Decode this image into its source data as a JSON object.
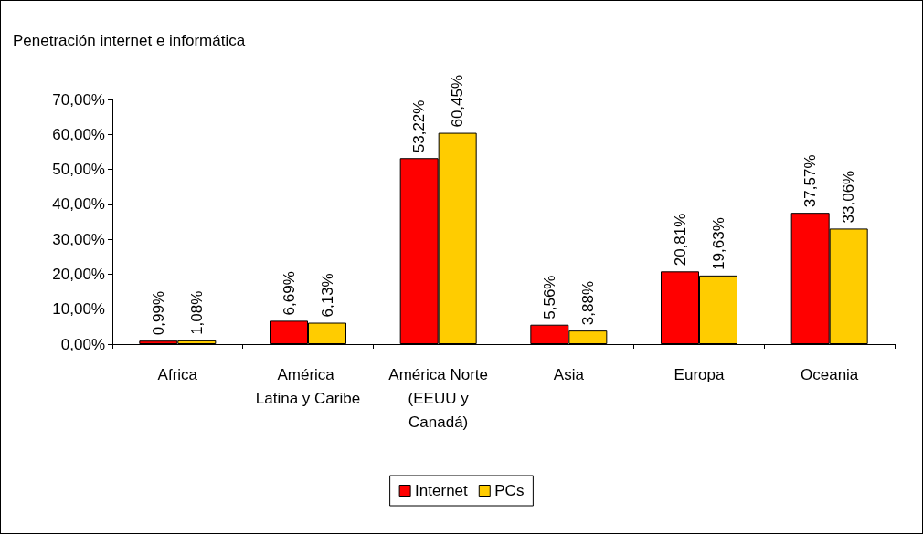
{
  "chart_data": {
    "type": "bar",
    "title": "Penetración internet e informática",
    "categories": [
      "Africa",
      "América Latina y Caribe",
      "América Norte (EEUU y Canadá)",
      "Asia",
      "Europa",
      "Oceania"
    ],
    "series": [
      {
        "name": "Internet",
        "color": "#ff0000",
        "values": [
          0.99,
          6.69,
          53.22,
          5.56,
          20.81,
          37.57
        ],
        "value_labels": [
          "0,99%",
          "6,69%",
          "53,22%",
          "5,56%",
          "20,81%",
          "37,57%"
        ]
      },
      {
        "name": "PCs",
        "color": "#ffcc00",
        "values": [
          1.08,
          6.13,
          60.45,
          3.88,
          19.63,
          33.06
        ],
        "value_labels": [
          "1,08%",
          "6,13%",
          "60,45%",
          "3,88%",
          "19,63%",
          "33,06%"
        ]
      }
    ],
    "ylim": [
      0,
      70
    ],
    "yticks": [
      {
        "value": 0,
        "label": "0,00%"
      },
      {
        "value": 10,
        "label": "10,00%"
      },
      {
        "value": 20,
        "label": "20,00%"
      },
      {
        "value": 30,
        "label": "30,00%"
      },
      {
        "value": 40,
        "label": "40,00%"
      },
      {
        "value": 50,
        "label": "50,00%"
      },
      {
        "value": 60,
        "label": "60,00%"
      },
      {
        "value": 70,
        "label": "70,00%"
      }
    ],
    "grid": false,
    "legend": "bottom"
  }
}
